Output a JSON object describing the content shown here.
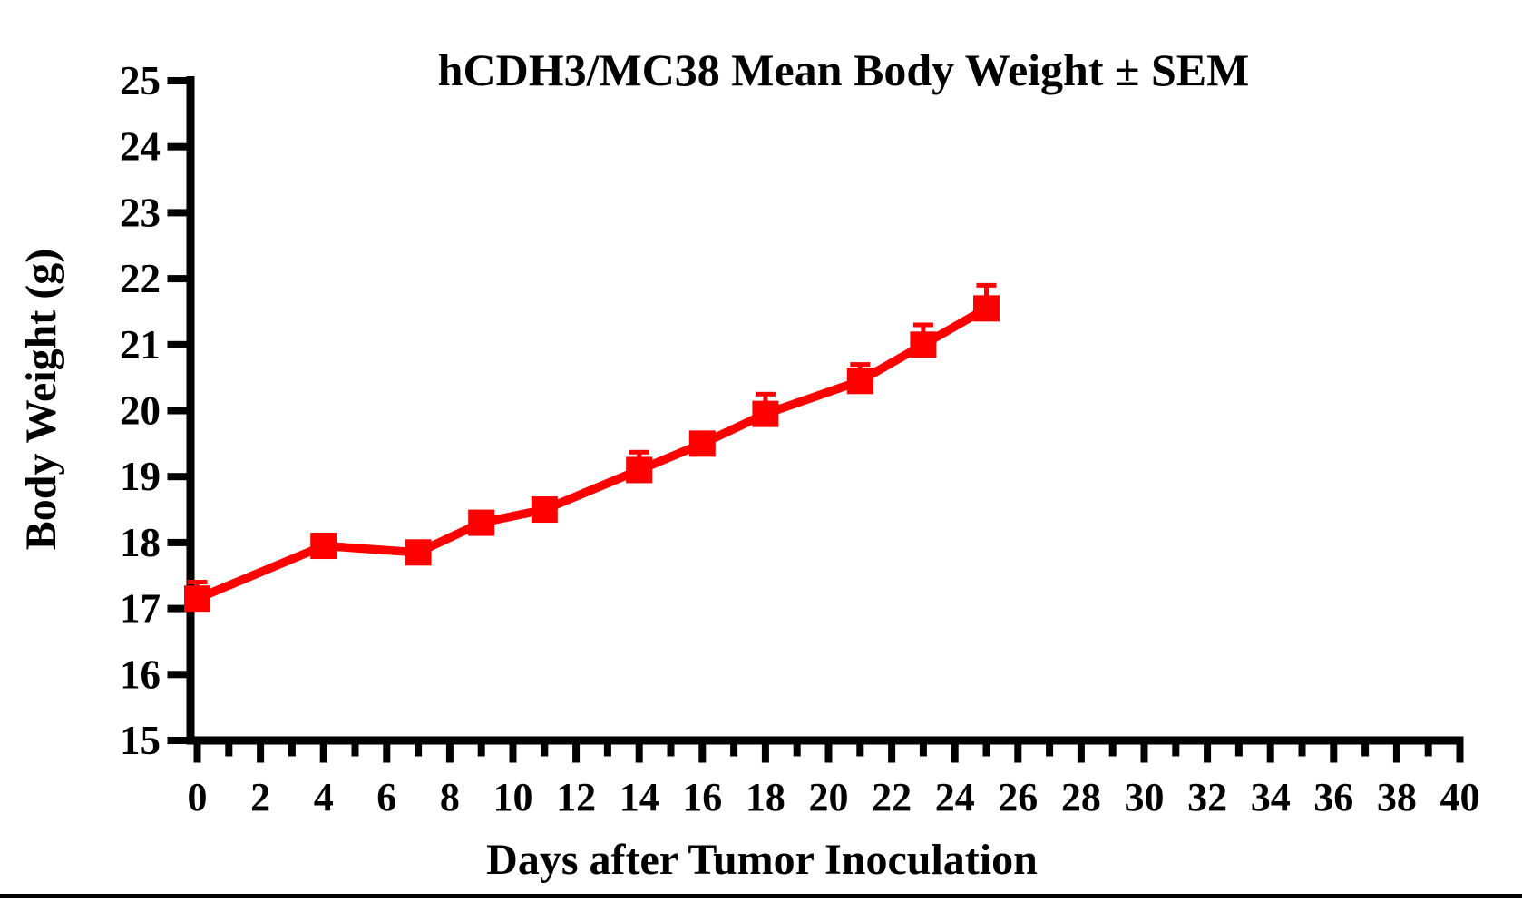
{
  "page": {
    "background": "#FFFFFF",
    "bottom_rule_color": "#000000"
  },
  "chart_data": {
    "type": "line",
    "title": "hCDH3/MC38 Mean Body Weight ± SEM",
    "xlabel": "Days after Tumor Inoculation",
    "ylabel": "Body Weight (g)",
    "xlim": [
      0,
      40
    ],
    "ylim": [
      15,
      25
    ],
    "x_major_tick_step": 2,
    "x_minor_tick_step": 1,
    "y_tick_step": 1,
    "grid": false,
    "legend_position": "none",
    "axis_color": "#000000",
    "series": [
      {
        "name": "hCDH3/MC38",
        "color": "#FF0000",
        "marker": "square",
        "error_bar_style": "SEM, upward with cap",
        "x": [
          0,
          4,
          7,
          9,
          11,
          14,
          16,
          18,
          21,
          23,
          25
        ],
        "mean": [
          17.15,
          17.95,
          17.85,
          18.3,
          18.5,
          19.1,
          19.5,
          19.95,
          20.45,
          21.0,
          21.55
        ],
        "sem": [
          0.25,
          0.1,
          0.1,
          0.1,
          0.1,
          0.27,
          0.1,
          0.3,
          0.25,
          0.3,
          0.35
        ]
      }
    ]
  }
}
